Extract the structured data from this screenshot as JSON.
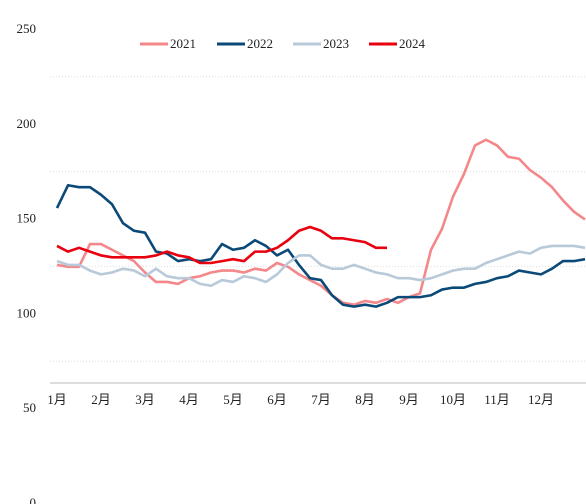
{
  "chart_data": {
    "type": "line",
    "categories": [
      "1月",
      null,
      null,
      null,
      "2月",
      null,
      null,
      null,
      "3月",
      null,
      null,
      null,
      "4月",
      null,
      null,
      null,
      "5月",
      null,
      null,
      null,
      "6月",
      null,
      null,
      null,
      "7月",
      null,
      null,
      null,
      "8月",
      null,
      null,
      null,
      "9月",
      null,
      null,
      null,
      "10月",
      null,
      null,
      null,
      "11月",
      null,
      null,
      null,
      "12月",
      null,
      null,
      null,
      null
    ],
    "series": [
      {
        "name": "2021",
        "color": "#f4878a",
        "values": [
          124,
          123,
          123,
          135,
          135,
          132,
          129,
          126,
          120,
          115,
          115,
          114,
          117,
          118,
          120,
          121,
          121,
          120,
          122,
          121,
          125,
          123,
          119,
          116,
          113,
          108,
          104,
          103,
          105,
          104,
          106,
          104,
          107,
          109,
          132,
          143,
          160,
          172,
          187,
          190,
          187,
          181,
          180,
          174,
          170,
          165,
          158,
          152,
          148
        ]
      },
      {
        "name": "2022",
        "color": "#0b4a78",
        "values": [
          154,
          166,
          165,
          165,
          161,
          156,
          146,
          142,
          141,
          131,
          130,
          126,
          127,
          126,
          127,
          135,
          132,
          133,
          137,
          134,
          129,
          132,
          124,
          117,
          116,
          108,
          103,
          102,
          103,
          102,
          104,
          107,
          107,
          107,
          108,
          111,
          112,
          112,
          114,
          115,
          117,
          118,
          121,
          120,
          119,
          122,
          126,
          126,
          127
        ]
      },
      {
        "name": "2023",
        "color": "#b8c9d9",
        "values": [
          126,
          124,
          124,
          121,
          119,
          120,
          122,
          121,
          118,
          122,
          118,
          117,
          117,
          114,
          113,
          116,
          115,
          118,
          117,
          115,
          119,
          125,
          129,
          129,
          124,
          122,
          122,
          124,
          122,
          120,
          119,
          117,
          117,
          116,
          117,
          119,
          121,
          122,
          122,
          125,
          127,
          129,
          131,
          130,
          133,
          134,
          134,
          134,
          133
        ]
      },
      {
        "name": "2024",
        "color": "#e8000e",
        "values": [
          134,
          131,
          133,
          131,
          129,
          128,
          128,
          128,
          128,
          129,
          131,
          129,
          128,
          125,
          125,
          126,
          127,
          126,
          131,
          131,
          133,
          137,
          142,
          144,
          142,
          138,
          138,
          137,
          136,
          133,
          133,
          null,
          null,
          null,
          null,
          null,
          null,
          null,
          null,
          null,
          null,
          null,
          null,
          null,
          null,
          null,
          null,
          null,
          null
        ]
      }
    ],
    "ylim": [
      0,
      250
    ],
    "yticks": [
      0,
      50,
      100,
      150,
      200,
      250
    ],
    "grid": true,
    "legend": "top"
  }
}
